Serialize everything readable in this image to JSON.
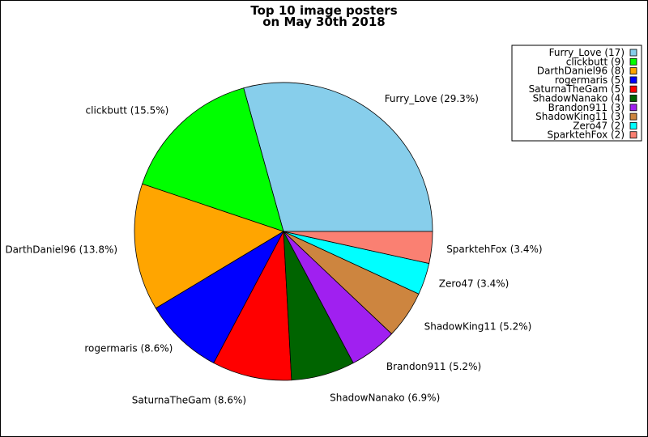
{
  "chart_data": {
    "type": "pie",
    "title_lines": [
      "Top 10 image posters",
      "on May 30th 2018"
    ],
    "slices": [
      {
        "name": "Furry_Love",
        "count": 17,
        "percent": 29.3,
        "label": "Furry_Love (29.3%)",
        "legend": "Furry_Love (17)",
        "color": "#87ceeb"
      },
      {
        "name": "clickbutt",
        "count": 9,
        "percent": 15.5,
        "label": "clickbutt (15.5%)",
        "legend": "clickbutt (9)",
        "color": "#00ff00"
      },
      {
        "name": "DarthDaniel96",
        "count": 8,
        "percent": 13.8,
        "label": "DarthDaniel96 (13.8%)",
        "legend": "DarthDaniel96 (8)",
        "color": "#ffa500"
      },
      {
        "name": "rogermaris",
        "count": 5,
        "percent": 8.6,
        "label": "rogermaris (8.6%)",
        "legend": "rogermaris (5)",
        "color": "#0000ff"
      },
      {
        "name": "SaturnaTheGam",
        "count": 5,
        "percent": 8.6,
        "label": "SaturnaTheGam (8.6%)",
        "legend": "SaturnaTheGam (5)",
        "color": "#ff0000"
      },
      {
        "name": "ShadowNanako",
        "count": 4,
        "percent": 6.9,
        "label": "ShadowNanako (6.9%)",
        "legend": "ShadowNanako (4)",
        "color": "#006400"
      },
      {
        "name": "Brandon911",
        "count": 3,
        "percent": 5.2,
        "label": "Brandon911 (5.2%)",
        "legend": "Brandon911 (3)",
        "color": "#a020f0"
      },
      {
        "name": "ShadowKing11",
        "count": 3,
        "percent": 5.2,
        "label": "ShadowKing11 (5.2%)",
        "legend": "ShadowKing11 (3)",
        "color": "#cd853f"
      },
      {
        "name": "Zero47",
        "count": 2,
        "percent": 3.4,
        "label": "Zero47 (3.4%)",
        "legend": "Zero47 (2)",
        "color": "#00ffff"
      },
      {
        "name": "SparktehFox",
        "count": 2,
        "percent": 3.4,
        "label": "SparktehFox (3.4%)",
        "legend": "SparktehFox (2)",
        "color": "#fa8072"
      }
    ],
    "legend_position": "top-right",
    "start_angle": "3 o'clock, counter-clockwise"
  }
}
